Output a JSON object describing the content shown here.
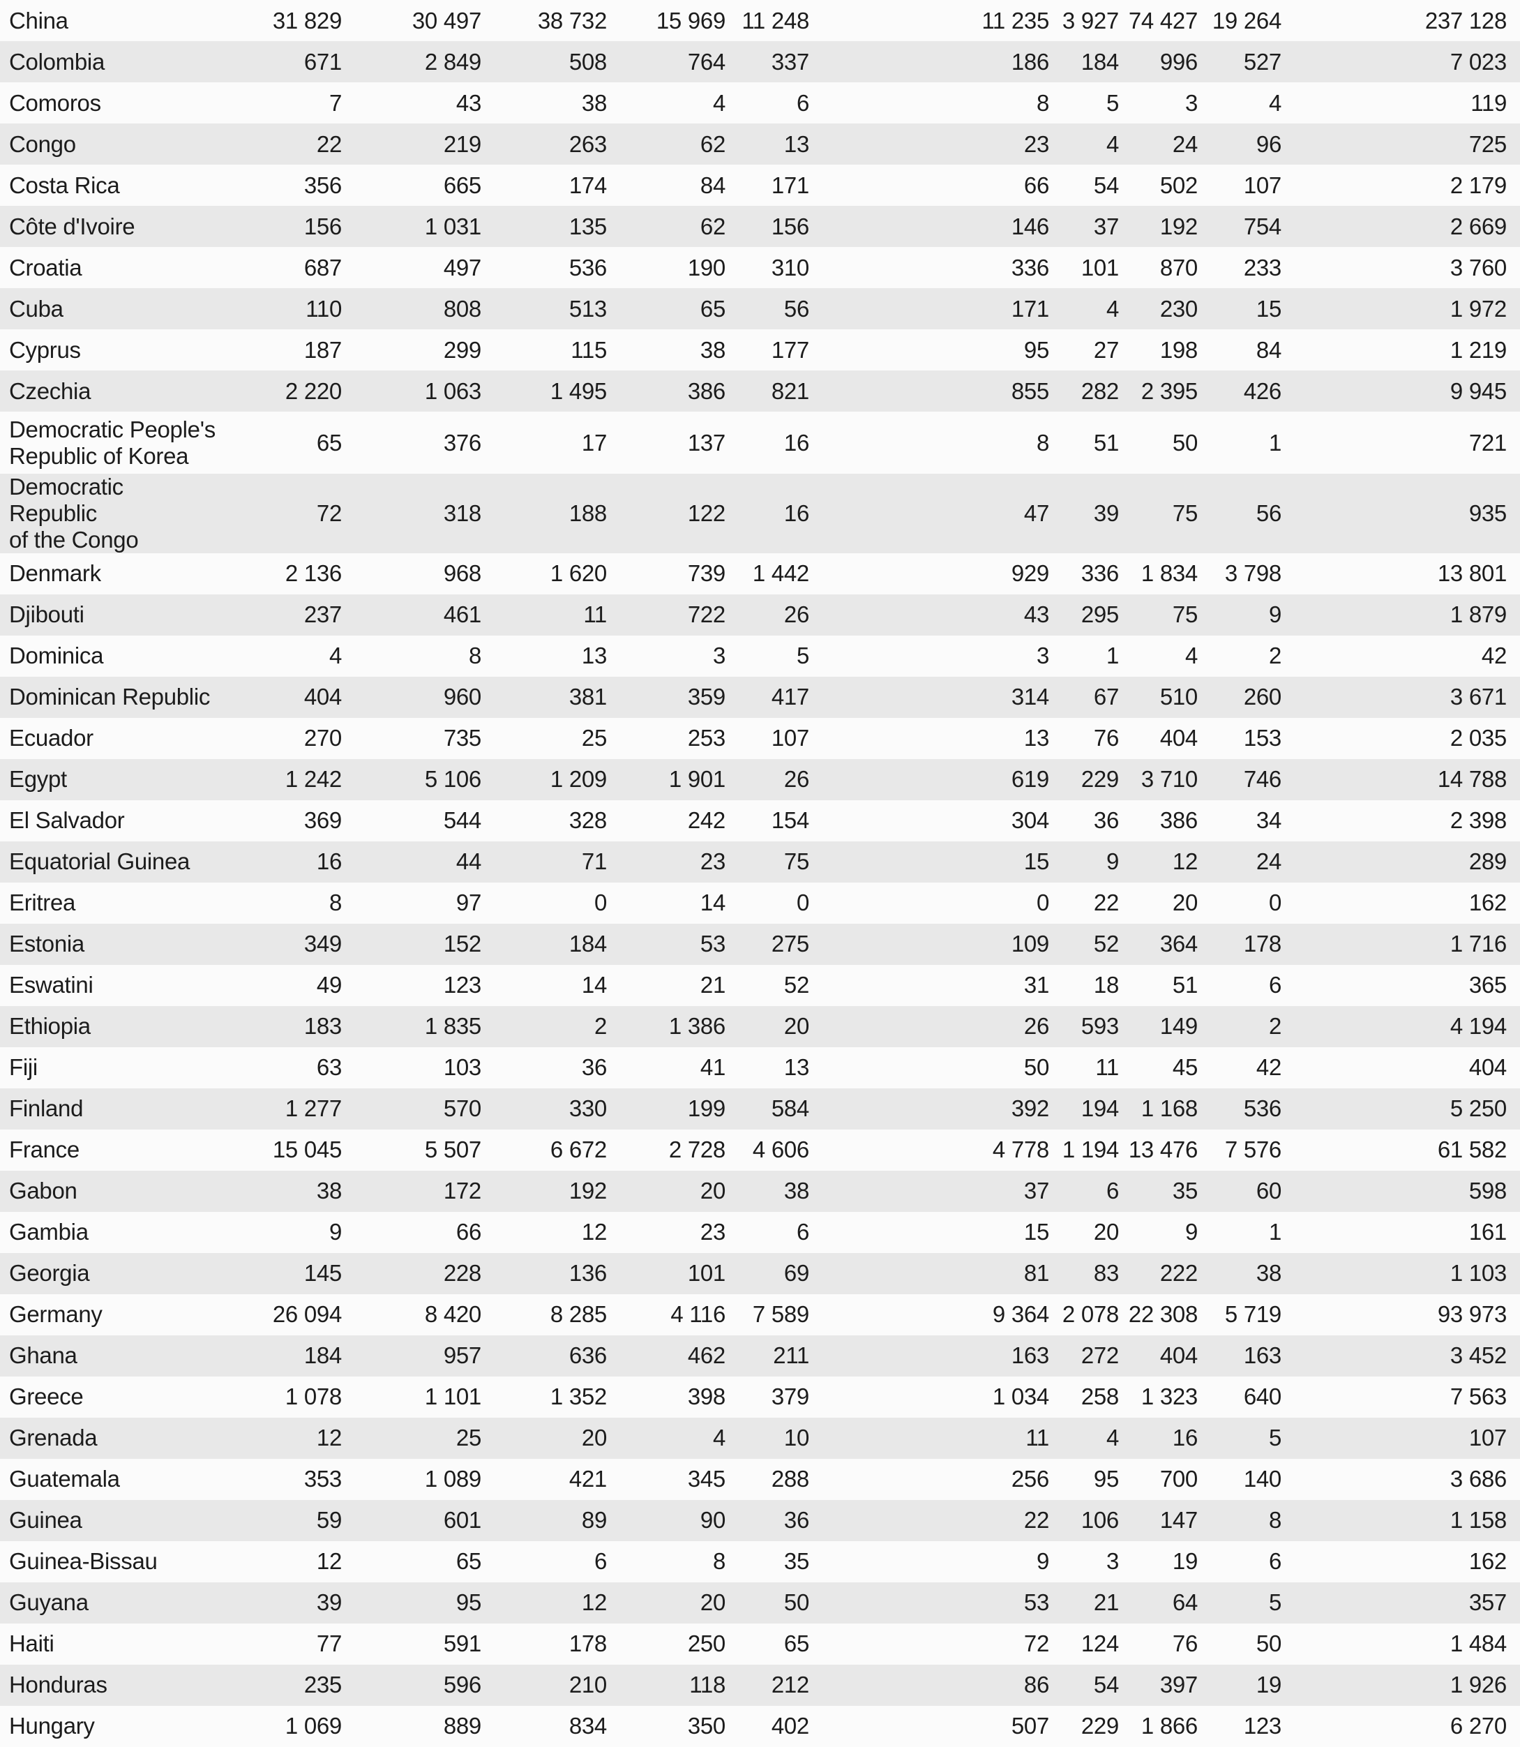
{
  "table": {
    "rows": [
      {
        "country": "China",
        "values": [
          "31 829",
          "30 497",
          "38 732",
          "15 969",
          "11 248",
          "11 235",
          "3 927",
          "74 427",
          "19 264",
          "237 128"
        ]
      },
      {
        "country": "Colombia",
        "values": [
          "671",
          "2 849",
          "508",
          "764",
          "337",
          "186",
          "184",
          "996",
          "527",
          "7 023"
        ]
      },
      {
        "country": "Comoros",
        "values": [
          "7",
          "43",
          "38",
          "4",
          "6",
          "8",
          "5",
          "3",
          "4",
          "119"
        ]
      },
      {
        "country": "Congo",
        "values": [
          "22",
          "219",
          "263",
          "62",
          "13",
          "23",
          "4",
          "24",
          "96",
          "725"
        ]
      },
      {
        "country": "Costa Rica",
        "values": [
          "356",
          "665",
          "174",
          "84",
          "171",
          "66",
          "54",
          "502",
          "107",
          "2 179"
        ]
      },
      {
        "country": "Côte d'Ivoire",
        "values": [
          "156",
          "1 031",
          "135",
          "62",
          "156",
          "146",
          "37",
          "192",
          "754",
          "2 669"
        ]
      },
      {
        "country": "Croatia",
        "values": [
          "687",
          "497",
          "536",
          "190",
          "310",
          "336",
          "101",
          "870",
          "233",
          "3 760"
        ]
      },
      {
        "country": "Cuba",
        "values": [
          "110",
          "808",
          "513",
          "65",
          "56",
          "171",
          "4",
          "230",
          "15",
          "1 972"
        ]
      },
      {
        "country": "Cyprus",
        "values": [
          "187",
          "299",
          "115",
          "38",
          "177",
          "95",
          "27",
          "198",
          "84",
          "1 219"
        ]
      },
      {
        "country": "Czechia",
        "values": [
          "2 220",
          "1 063",
          "1 495",
          "386",
          "821",
          "855",
          "282",
          "2 395",
          "426",
          "9 945"
        ]
      },
      {
        "country": "Democratic People's\nRepublic of Korea",
        "values": [
          "65",
          "376",
          "17",
          "137",
          "16",
          "8",
          "51",
          "50",
          "1",
          "721"
        ]
      },
      {
        "country": "Democratic Republic\nof the Congo",
        "values": [
          "72",
          "318",
          "188",
          "122",
          "16",
          "47",
          "39",
          "75",
          "56",
          "935"
        ]
      },
      {
        "country": "Denmark",
        "values": [
          "2 136",
          "968",
          "1 620",
          "739",
          "1 442",
          "929",
          "336",
          "1 834",
          "3 798",
          "13 801"
        ]
      },
      {
        "country": "Djibouti",
        "values": [
          "237",
          "461",
          "11",
          "722",
          "26",
          "43",
          "295",
          "75",
          "9",
          "1 879"
        ]
      },
      {
        "country": "Dominica",
        "values": [
          "4",
          "8",
          "13",
          "3",
          "5",
          "3",
          "1",
          "4",
          "2",
          "42"
        ]
      },
      {
        "country": "Dominican Republic",
        "values": [
          "404",
          "960",
          "381",
          "359",
          "417",
          "314",
          "67",
          "510",
          "260",
          "3 671"
        ]
      },
      {
        "country": "Ecuador",
        "values": [
          "270",
          "735",
          "25",
          "253",
          "107",
          "13",
          "76",
          "404",
          "153",
          "2 035"
        ]
      },
      {
        "country": "Egypt",
        "values": [
          "1 242",
          "5 106",
          "1 209",
          "1 901",
          "26",
          "619",
          "229",
          "3 710",
          "746",
          "14 788"
        ]
      },
      {
        "country": "El Salvador",
        "values": [
          "369",
          "544",
          "328",
          "242",
          "154",
          "304",
          "36",
          "386",
          "34",
          "2 398"
        ]
      },
      {
        "country": "Equatorial Guinea",
        "values": [
          "16",
          "44",
          "71",
          "23",
          "75",
          "15",
          "9",
          "12",
          "24",
          "289"
        ]
      },
      {
        "country": "Eritrea",
        "values": [
          "8",
          "97",
          "0",
          "14",
          "0",
          "0",
          "22",
          "20",
          "0",
          "162"
        ]
      },
      {
        "country": "Estonia",
        "values": [
          "349",
          "152",
          "184",
          "53",
          "275",
          "109",
          "52",
          "364",
          "178",
          "1 716"
        ]
      },
      {
        "country": "Eswatini",
        "values": [
          "49",
          "123",
          "14",
          "21",
          "52",
          "31",
          "18",
          "51",
          "6",
          "365"
        ]
      },
      {
        "country": "Ethiopia",
        "values": [
          "183",
          "1 835",
          "2",
          "1 386",
          "20",
          "26",
          "593",
          "149",
          "2",
          "4 194"
        ]
      },
      {
        "country": "Fiji",
        "values": [
          "63",
          "103",
          "36",
          "41",
          "13",
          "50",
          "11",
          "45",
          "42",
          "404"
        ]
      },
      {
        "country": "Finland",
        "values": [
          "1 277",
          "570",
          "330",
          "199",
          "584",
          "392",
          "194",
          "1 168",
          "536",
          "5 250"
        ]
      },
      {
        "country": "France",
        "values": [
          "15 045",
          "5 507",
          "6 672",
          "2 728",
          "4 606",
          "4 778",
          "1 194",
          "13 476",
          "7 576",
          "61 582"
        ]
      },
      {
        "country": "Gabon",
        "values": [
          "38",
          "172",
          "192",
          "20",
          "38",
          "37",
          "6",
          "35",
          "60",
          "598"
        ]
      },
      {
        "country": "Gambia",
        "values": [
          "9",
          "66",
          "12",
          "23",
          "6",
          "15",
          "20",
          "9",
          "1",
          "161"
        ]
      },
      {
        "country": "Georgia",
        "values": [
          "145",
          "228",
          "136",
          "101",
          "69",
          "81",
          "83",
          "222",
          "38",
          "1 103"
        ]
      },
      {
        "country": "Germany",
        "values": [
          "26 094",
          "8 420",
          "8 285",
          "4 116",
          "7 589",
          "9 364",
          "2 078",
          "22 308",
          "5 719",
          "93 973"
        ]
      },
      {
        "country": "Ghana",
        "values": [
          "184",
          "957",
          "636",
          "462",
          "211",
          "163",
          "272",
          "404",
          "163",
          "3 452"
        ]
      },
      {
        "country": "Greece",
        "values": [
          "1 078",
          "1 101",
          "1 352",
          "398",
          "379",
          "1 034",
          "258",
          "1 323",
          "640",
          "7 563"
        ]
      },
      {
        "country": "Grenada",
        "values": [
          "12",
          "25",
          "20",
          "4",
          "10",
          "11",
          "4",
          "16",
          "5",
          "107"
        ]
      },
      {
        "country": "Guatemala",
        "values": [
          "353",
          "1 089",
          "421",
          "345",
          "288",
          "256",
          "95",
          "700",
          "140",
          "3 686"
        ]
      },
      {
        "country": "Guinea",
        "values": [
          "59",
          "601",
          "89",
          "90",
          "36",
          "22",
          "106",
          "147",
          "8",
          "1 158"
        ]
      },
      {
        "country": "Guinea-Bissau",
        "values": [
          "12",
          "65",
          "6",
          "8",
          "35",
          "9",
          "3",
          "19",
          "6",
          "162"
        ]
      },
      {
        "country": "Guyana",
        "values": [
          "39",
          "95",
          "12",
          "20",
          "50",
          "53",
          "21",
          "64",
          "5",
          "357"
        ]
      },
      {
        "country": "Haiti",
        "values": [
          "77",
          "591",
          "178",
          "250",
          "65",
          "72",
          "124",
          "76",
          "50",
          "1 484"
        ]
      },
      {
        "country": "Honduras",
        "values": [
          "235",
          "596",
          "210",
          "118",
          "212",
          "86",
          "54",
          "397",
          "19",
          "1 926"
        ]
      },
      {
        "country": "Hungary",
        "values": [
          "1 069",
          "889",
          "834",
          "350",
          "402",
          "507",
          "229",
          "1 866",
          "123",
          "6 270"
        ]
      }
    ]
  },
  "styles": {
    "row_bg": "#fbfbfb",
    "row_alt_bg": "#e8e8e8",
    "text_color": "#1c1c1c"
  }
}
